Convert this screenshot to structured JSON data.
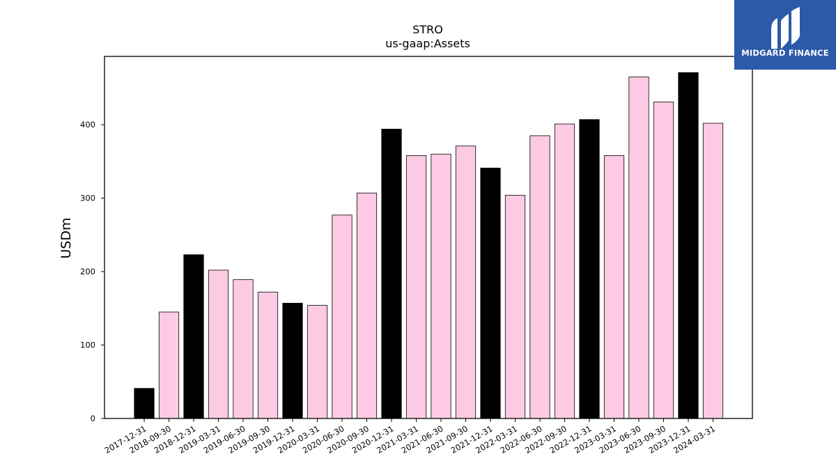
{
  "brand": {
    "name": "MIDGARD FINANCE",
    "background": "#2b5aa8",
    "icon": "midgard-logo-icon"
  },
  "chart_data": {
    "type": "bar",
    "title": "STRO",
    "subtitle": "us-gaap:Assets",
    "xlabel": "",
    "ylabel": "USDm",
    "ylim": [
      0,
      493
    ],
    "yticks": [
      0,
      100,
      200,
      300,
      400
    ],
    "grid": false,
    "legend": "none",
    "categories": [
      "2017-12-31",
      "2018-09-30",
      "2018-12-31",
      "2019-03-31",
      "2019-06-30",
      "2019-09-30",
      "2019-12-31",
      "2020-03-31",
      "2020-06-30",
      "2020-09-30",
      "2020-12-31",
      "2021-03-31",
      "2021-06-30",
      "2021-09-30",
      "2021-12-31",
      "2022-03-31",
      "2022-06-30",
      "2022-09-30",
      "2022-12-31",
      "2023-03-31",
      "2023-06-30",
      "2023-09-30",
      "2023-12-31",
      "2024-03-31"
    ],
    "values": [
      41,
      145,
      223,
      202,
      189,
      172,
      157,
      154,
      277,
      307,
      394,
      358,
      360,
      371,
      341,
      304,
      385,
      401,
      407,
      358,
      465,
      431,
      471,
      402
    ],
    "colors": {
      "year_end": "#000000",
      "quarter": "#fccae3",
      "edge": "#000000"
    },
    "year_end_categories": [
      "2017-12-31",
      "2018-12-31",
      "2019-12-31",
      "2020-12-31",
      "2021-12-31",
      "2022-12-31",
      "2023-12-31"
    ]
  }
}
